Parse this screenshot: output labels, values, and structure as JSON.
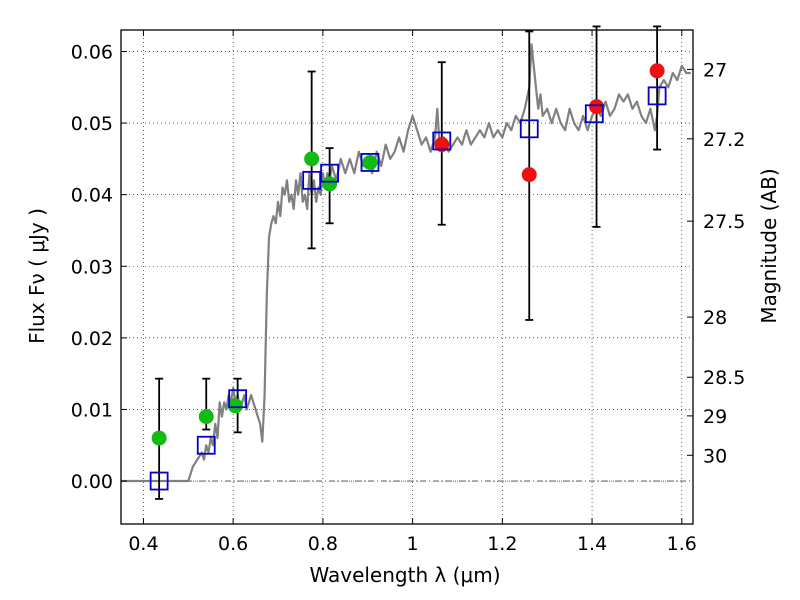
{
  "chart_data": {
    "type": "scatter",
    "xlabel": "Wavelength  λ (μm)",
    "ylabel": "Flux  Fν  ( μJy )",
    "ylabel_right": "Magnitude (AB)",
    "xlim": [
      0.35,
      1.625
    ],
    "ylim": [
      -0.006,
      0.063
    ],
    "grid": true,
    "x_ticks": [
      0.4,
      0.6,
      0.8,
      1.0,
      1.2,
      1.4,
      1.6
    ],
    "x_tick_labels": [
      "0.4",
      "0.6",
      "0.8",
      "1",
      "1.2",
      "1.4",
      "1.6"
    ],
    "y_ticks": [
      0.0,
      0.01,
      0.02,
      0.03,
      0.04,
      0.05,
      0.06
    ],
    "y_tick_labels": [
      "0.00",
      "0.01",
      "0.02",
      "0.03",
      "0.04",
      "0.05",
      "0.06"
    ],
    "mag_ticks": [
      {
        "label": "27",
        "flux": 0.0575
      },
      {
        "label": "27.2",
        "flux": 0.0478
      },
      {
        "label": "27.5",
        "flux": 0.0363
      },
      {
        "label": "28",
        "flux": 0.0229
      },
      {
        "label": "28.5",
        "flux": 0.0145
      },
      {
        "label": "29",
        "flux": 0.0091
      },
      {
        "label": "30",
        "flux": 0.0036
      }
    ],
    "series": [
      {
        "name": "model_spectrum",
        "kind": "line",
        "color": "#808080",
        "x": [
          0.35,
          0.49,
          0.5,
          0.51,
          0.52,
          0.53,
          0.535,
          0.54,
          0.545,
          0.55,
          0.555,
          0.56,
          0.565,
          0.57,
          0.575,
          0.58,
          0.585,
          0.59,
          0.595,
          0.6,
          0.605,
          0.61,
          0.615,
          0.62,
          0.625,
          0.63,
          0.635,
          0.64,
          0.645,
          0.65,
          0.655,
          0.66,
          0.665,
          0.67,
          0.675,
          0.68,
          0.685,
          0.69,
          0.695,
          0.7,
          0.705,
          0.71,
          0.715,
          0.72,
          0.725,
          0.73,
          0.735,
          0.74,
          0.745,
          0.75,
          0.755,
          0.76,
          0.765,
          0.77,
          0.775,
          0.78,
          0.785,
          0.79,
          0.795,
          0.8,
          0.805,
          0.81,
          0.815,
          0.82,
          0.83,
          0.84,
          0.85,
          0.86,
          0.87,
          0.88,
          0.89,
          0.9,
          0.91,
          0.92,
          0.93,
          0.94,
          0.95,
          0.96,
          0.97,
          0.98,
          0.99,
          1.0,
          1.01,
          1.02,
          1.03,
          1.04,
          1.05,
          1.055,
          1.06,
          1.07,
          1.08,
          1.09,
          1.1,
          1.11,
          1.12,
          1.13,
          1.14,
          1.15,
          1.16,
          1.17,
          1.18,
          1.19,
          1.2,
          1.21,
          1.22,
          1.23,
          1.24,
          1.25,
          1.26,
          1.265,
          1.27,
          1.28,
          1.285,
          1.29,
          1.3,
          1.31,
          1.32,
          1.33,
          1.34,
          1.35,
          1.36,
          1.37,
          1.38,
          1.39,
          1.4,
          1.41,
          1.42,
          1.43,
          1.44,
          1.45,
          1.46,
          1.47,
          1.48,
          1.49,
          1.5,
          1.51,
          1.52,
          1.53,
          1.54,
          1.545,
          1.55,
          1.56,
          1.57,
          1.58,
          1.59,
          1.6,
          1.61,
          1.62
        ],
        "y": [
          0.0,
          0.0,
          0.0,
          0.002,
          0.003,
          0.004,
          0.003,
          0.005,
          0.004,
          0.006,
          0.005,
          0.008,
          0.006,
          0.011,
          0.009,
          0.011,
          0.01,
          0.012,
          0.011,
          0.013,
          0.011,
          0.012,
          0.01,
          0.011,
          0.012,
          0.01,
          0.011,
          0.012,
          0.011,
          0.01,
          0.009,
          0.008,
          0.0055,
          0.012,
          0.026,
          0.034,
          0.036,
          0.037,
          0.036,
          0.039,
          0.037,
          0.041,
          0.04,
          0.042,
          0.039,
          0.04,
          0.038,
          0.042,
          0.04,
          0.043,
          0.039,
          0.04,
          0.038,
          0.043,
          0.04,
          0.042,
          0.039,
          0.041,
          0.04,
          0.043,
          0.041,
          0.043,
          0.042,
          0.044,
          0.042,
          0.045,
          0.043,
          0.045,
          0.043,
          0.046,
          0.044,
          0.045,
          0.043,
          0.046,
          0.044,
          0.047,
          0.045,
          0.046,
          0.048,
          0.046,
          0.049,
          0.051,
          0.049,
          0.047,
          0.048,
          0.046,
          0.048,
          0.052,
          0.047,
          0.048,
          0.046,
          0.047,
          0.048,
          0.047,
          0.049,
          0.047,
          0.048,
          0.049,
          0.048,
          0.05,
          0.048,
          0.049,
          0.048,
          0.05,
          0.049,
          0.051,
          0.05,
          0.052,
          0.055,
          0.061,
          0.058,
          0.052,
          0.054,
          0.051,
          0.052,
          0.05,
          0.052,
          0.05,
          0.049,
          0.052,
          0.05,
          0.049,
          0.051,
          0.049,
          0.051,
          0.052,
          0.051,
          0.053,
          0.051,
          0.052,
          0.054,
          0.053,
          0.054,
          0.052,
          0.053,
          0.051,
          0.05,
          0.052,
          0.049,
          0.051,
          0.055,
          0.056,
          0.055,
          0.057,
          0.056,
          0.058,
          0.057,
          0.057
        ]
      },
      {
        "name": "observed_green",
        "kind": "points",
        "color": "#11bb11",
        "x": [
          0.435,
          0.54,
          0.605,
          0.775,
          0.815,
          0.905
        ],
        "y": [
          0.006,
          0.009,
          0.0105,
          0.045,
          0.0415,
          0.0445
        ]
      },
      {
        "name": "observed_red",
        "kind": "points",
        "color": "#ee1111",
        "x": [
          1.065,
          1.26,
          1.41,
          1.545
        ],
        "y": [
          0.047,
          0.0428,
          0.0523,
          0.0573
        ]
      },
      {
        "name": "model_photometry",
        "kind": "squares",
        "color": "#0000cc",
        "x": [
          0.435,
          0.54,
          0.61,
          0.775,
          0.815,
          0.905,
          1.065,
          1.26,
          1.405,
          1.545
        ],
        "y": [
          0.0,
          0.005,
          0.0115,
          0.042,
          0.043,
          0.0445,
          0.0475,
          0.0492,
          0.0513,
          0.0538
        ]
      },
      {
        "name": "error_bars",
        "kind": "errorbars",
        "color": "#000000",
        "x": [
          0.435,
          0.54,
          0.61,
          0.775,
          0.815,
          1.065,
          1.26,
          1.41,
          1.545
        ],
        "y_low": [
          -0.0025,
          0.0072,
          0.0068,
          0.0325,
          0.036,
          0.0358,
          0.0225,
          0.0355,
          0.0463
        ],
        "y_high": [
          0.0143,
          0.0143,
          0.0143,
          0.0572,
          0.0465,
          0.0585,
          0.0628,
          0.0635,
          0.0635
        ]
      }
    ]
  }
}
